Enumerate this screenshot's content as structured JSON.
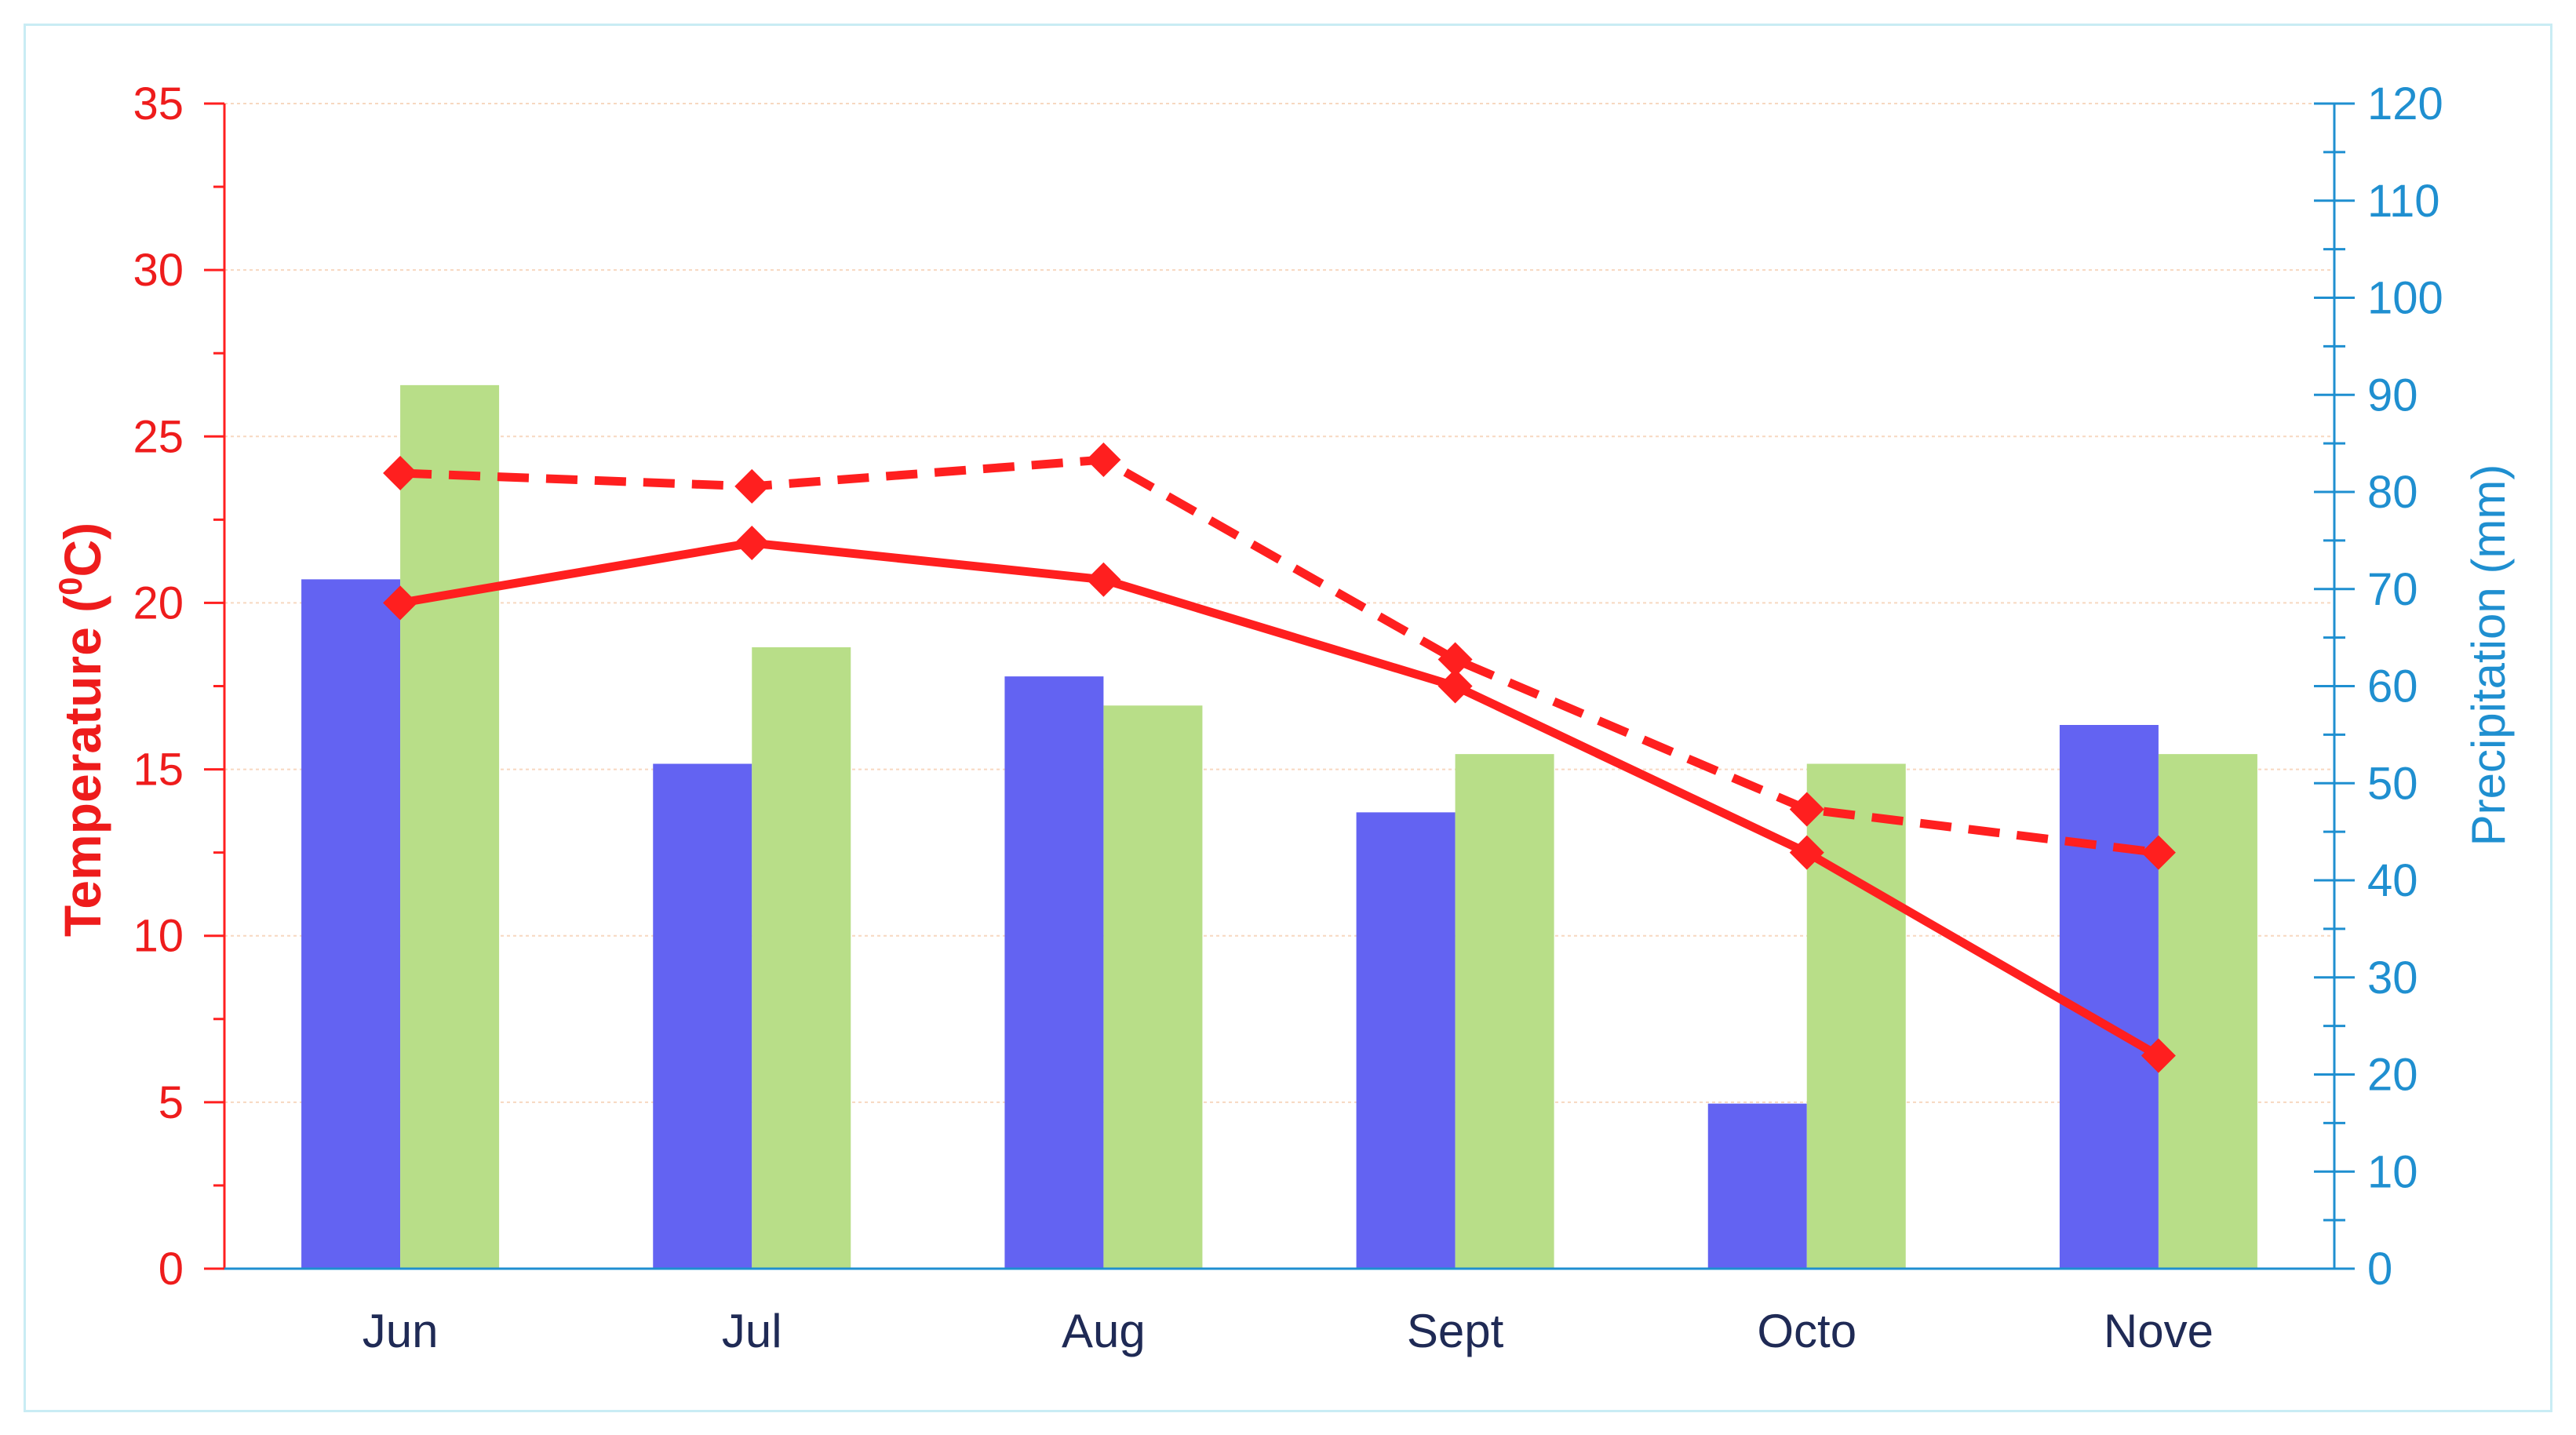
{
  "colors": {
    "temperature": "#ff1f1f",
    "precipitation_axis": "#1f8fd0",
    "bar_series_1": "#6363f2",
    "bar_series_2": "#b8de88",
    "grid": "#f7d8c0",
    "frame": "#c9ecf4",
    "category_text": "#1f2a55"
  },
  "chart_data": {
    "type": "bar+line",
    "categories": [
      "Jun",
      "Jul",
      "Aug",
      "Sept",
      "Octo",
      "Nove"
    ],
    "left_axis": {
      "label_main": "Temperature (",
      "label_sup": "0",
      "label_tail": "C)",
      "ylim": [
        0,
        35
      ],
      "ticks": [
        "0",
        "5",
        "10",
        "15",
        "20",
        "25",
        "30",
        "35"
      ]
    },
    "right_axis": {
      "label": "Precipitation (mm)",
      "ylim": [
        0,
        120
      ],
      "ticks": [
        "0",
        "10",
        "20",
        "30",
        "40",
        "50",
        "60",
        "70",
        "80",
        "90",
        "100",
        "110",
        "120"
      ]
    },
    "bar_series": [
      {
        "axis": "right",
        "color": "#6363f2",
        "values": [
          71,
          52,
          61,
          47,
          17,
          56
        ]
      },
      {
        "axis": "right",
        "color": "#b8de88",
        "values": [
          91,
          64,
          58,
          53,
          52,
          53
        ]
      }
    ],
    "line_series": [
      {
        "axis": "left",
        "style": "solid",
        "color": "#ff1f1f",
        "values": [
          20.0,
          21.8,
          20.7,
          17.5,
          12.5,
          6.4
        ]
      },
      {
        "axis": "left",
        "style": "dashed",
        "color": "#ff1f1f",
        "values": [
          23.9,
          23.5,
          24.3,
          18.3,
          13.8,
          12.5
        ]
      }
    ],
    "grid": true,
    "legend": "none"
  }
}
